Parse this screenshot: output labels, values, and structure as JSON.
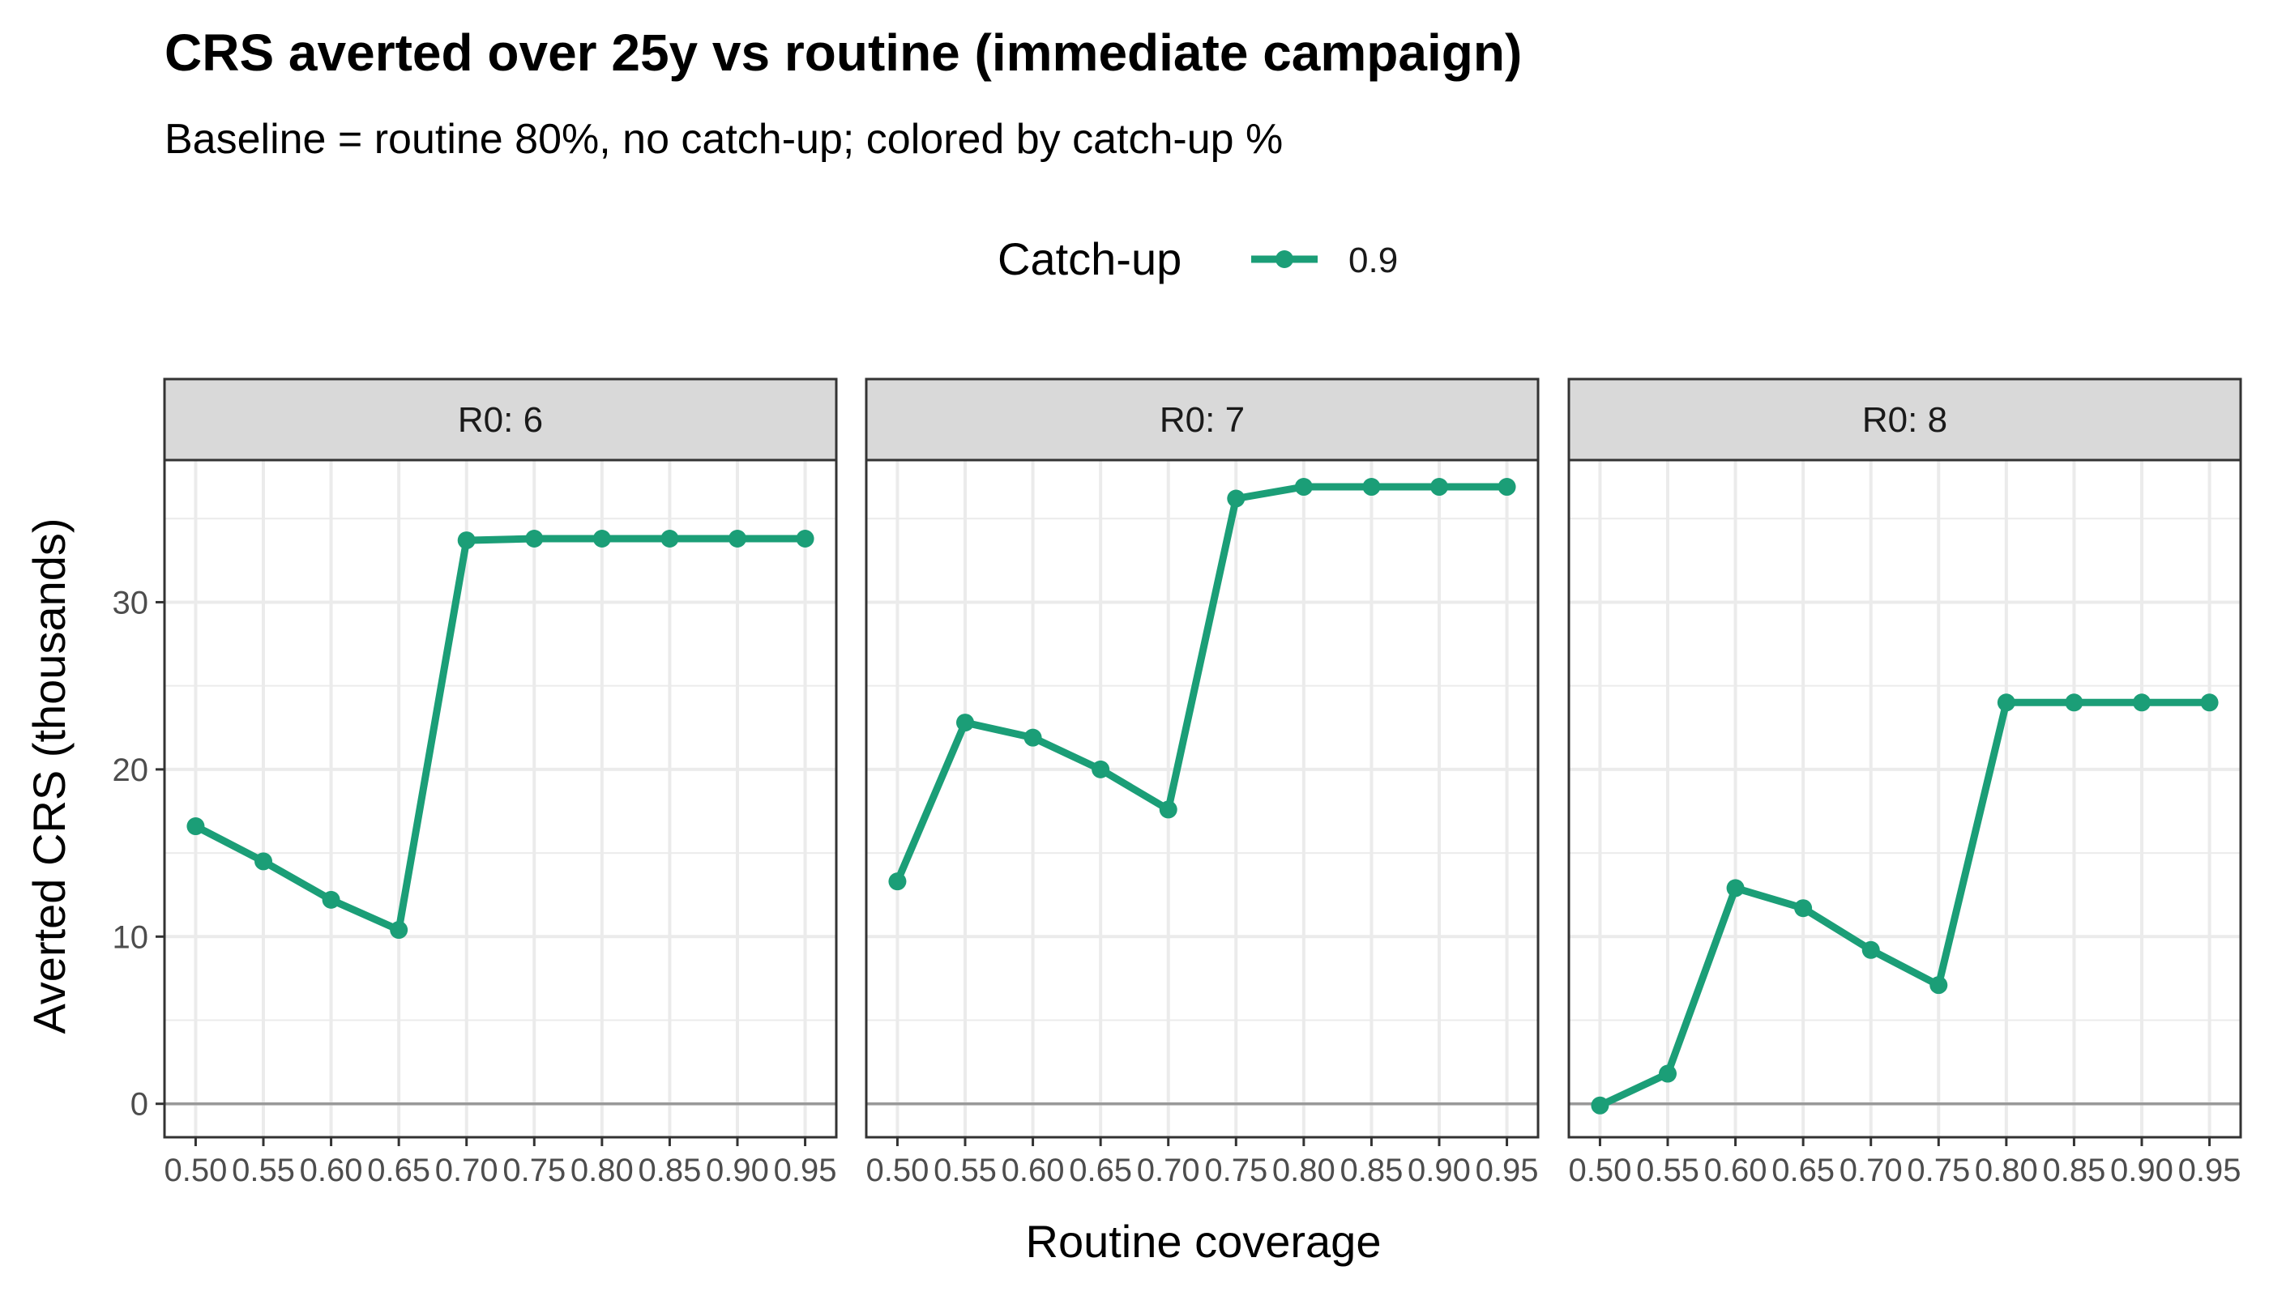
{
  "chart_data": {
    "type": "line",
    "title": "CRS averted over 25y vs routine (immediate campaign)",
    "subtitle": "Baseline = routine 80%, no catch-up; colored by catch-up %",
    "xlabel": "Routine coverage",
    "ylabel": "Averted CRS (thousands)",
    "legend": {
      "title": "Catch-up",
      "position": "top",
      "entries": [
        {
          "label": "0.9",
          "color": "#1b9e77"
        }
      ]
    },
    "x_ticks": [
      "0.50",
      "0.55",
      "0.60",
      "0.65",
      "0.70",
      "0.75",
      "0.80",
      "0.85",
      "0.90",
      "0.95"
    ],
    "y_ticks": [
      "0",
      "10",
      "20",
      "30"
    ],
    "xlim": [
      0.477,
      0.973
    ],
    "ylim": [
      -2,
      38.5
    ],
    "grid": true,
    "x": [
      0.5,
      0.55,
      0.6,
      0.65,
      0.7,
      0.75,
      0.8,
      0.85,
      0.9,
      0.95
    ],
    "panels": [
      {
        "label": "R0: 6",
        "series": [
          {
            "name": "0.9",
            "color": "#1b9e77",
            "values": [
              16.6,
              14.5,
              12.2,
              10.4,
              33.7,
              33.8,
              33.8,
              33.8,
              33.8,
              33.8
            ]
          }
        ]
      },
      {
        "label": "R0: 7",
        "series": [
          {
            "name": "0.9",
            "color": "#1b9e77",
            "values": [
              13.3,
              22.8,
              21.9,
              20.0,
              17.6,
              36.2,
              36.9,
              36.9,
              36.9,
              36.9
            ]
          }
        ]
      },
      {
        "label": "R0: 8",
        "series": [
          {
            "name": "0.9",
            "color": "#1b9e77",
            "values": [
              -0.1,
              1.8,
              12.9,
              11.7,
              9.2,
              7.1,
              24.0,
              24.0,
              24.0,
              24.0
            ]
          }
        ]
      }
    ],
    "colors": {
      "series": "#1b9e77",
      "strip_fill": "#d9d9d9",
      "grid": "#ebebeb",
      "zero_line": "#999999"
    }
  }
}
